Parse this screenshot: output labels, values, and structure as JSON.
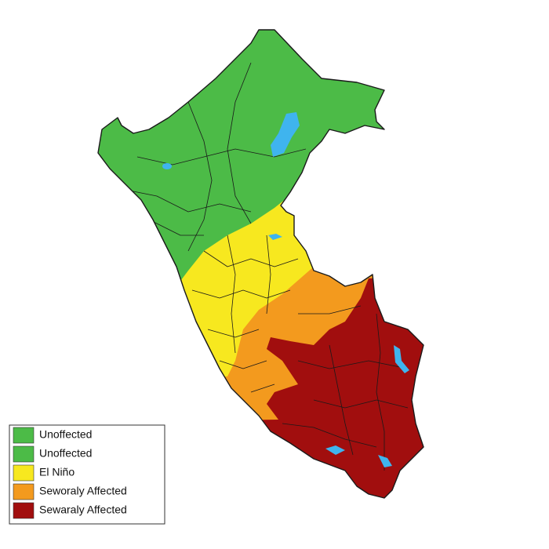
{
  "legend": {
    "items": [
      {
        "label": "Unoffected",
        "color": "#4cbb47"
      },
      {
        "label": "Unoffected",
        "color": "#4cbb47"
      },
      {
        "label": "El Niño",
        "color": "#f7e81f"
      },
      {
        "label": "Seworaly Affected",
        "color": "#f39a1e"
      },
      {
        "label": "Sewaraly Affected",
        "color": "#a10e0e"
      }
    ]
  }
}
